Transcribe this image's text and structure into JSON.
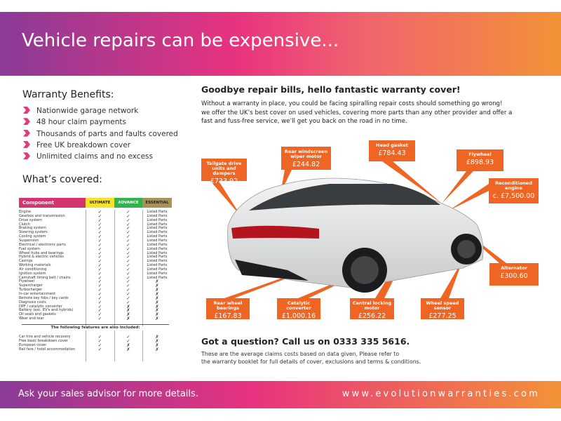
{
  "header": {
    "title": "Vehicle repairs can be expensive..."
  },
  "benefits": {
    "title": "Warranty Benefits:",
    "items": [
      "Nationwide garage network",
      "48 hour claim payments",
      "Thousands of parts and faults covered",
      "Free UK breakdown cover",
      "Unlimited claims and no excess"
    ]
  },
  "covered": {
    "title": "What’s covered:",
    "columns": [
      "Component",
      "ULTIMATE",
      "ADVANCE",
      "ESSENTIAL"
    ],
    "column_colors": [
      "#d6336f",
      "#f7e22a",
      "#2fb34a",
      "#a8915a"
    ],
    "rows": [
      [
        "Engine",
        "✓",
        "✓",
        "Listed Parts"
      ],
      [
        "Gearbox and transmission",
        "✓",
        "✓",
        "Listed Parts"
      ],
      [
        "Drive system",
        "✓",
        "✓",
        "Listed Parts"
      ],
      [
        "Clutch",
        "✓",
        "✓",
        "Listed Parts"
      ],
      [
        "Braking system",
        "✓",
        "✓",
        "Listed Parts"
      ],
      [
        "Steering system",
        "✓",
        "✓",
        "Listed Parts"
      ],
      [
        "Cooling system",
        "✓",
        "✓",
        "Listed Parts"
      ],
      [
        "Suspension",
        "✓",
        "✓",
        "Listed Parts"
      ],
      [
        "Electrical / electronic parts",
        "✓",
        "✓",
        "Listed Parts"
      ],
      [
        "Fuel system",
        "✓",
        "✓",
        "Listed Parts"
      ],
      [
        "Wheel hubs and bearings",
        "✓",
        "✓",
        "Listed Parts"
      ],
      [
        "Hybrid & electric vehicles",
        "✓",
        "✓",
        "Listed Parts"
      ],
      [
        "Casings",
        "✓",
        "✓",
        "Listed Parts"
      ],
      [
        "Working materials",
        "✓",
        "✓",
        "Listed Parts"
      ],
      [
        "Air conditioning",
        "✓",
        "✓",
        "Listed Parts"
      ],
      [
        "Ignition system",
        "✓",
        "✓",
        "Listed Parts"
      ],
      [
        "Camshaft timing belt / chains",
        "✓",
        "✓",
        "Listed Parts"
      ],
      [
        "Flywheel",
        "✓",
        "✓",
        "✗"
      ],
      [
        "Supercharger",
        "✓",
        "✓",
        "✗"
      ],
      [
        "Turbocharger",
        "✓",
        "✓",
        "✗"
      ],
      [
        "In-car entertainment",
        "✓",
        "✓",
        "✗"
      ],
      [
        "Remote key fobs / key cards",
        "✓",
        "✓",
        "✗"
      ],
      [
        "Diagnosis costs",
        "✓",
        "✓",
        "✗"
      ],
      [
        "DPF / catalytic converter",
        "✓",
        "✗",
        "✗"
      ],
      [
        "Battery (exc. EV's and hybrids)",
        "✓",
        "✗",
        "✗"
      ],
      [
        "Oil seals and gaskets",
        "✓",
        "✗",
        "✗"
      ],
      [
        "Wear and tear",
        "✓",
        "✗",
        "✗"
      ]
    ],
    "extras_title": "The following features are also included:",
    "extras": [
      [
        "Car hire and vehicle recovery",
        "✓",
        "✓",
        "✗"
      ],
      [
        "Free basic breakdown cover",
        "✓",
        "✓",
        "✗"
      ],
      [
        "European cover",
        "✓",
        "✗",
        "✗"
      ],
      [
        "Rail fare / hotel accommodation",
        "✓",
        "✗",
        "✗"
      ]
    ]
  },
  "intro": {
    "title": "Goodbye repair bills, hello fantastic warranty cover!",
    "lines": [
      "Without a warranty in place, you could be facing spiralling repair costs should something go wrong!",
      "we offer the UK’s best cover on used vehicles, covering more parts than any other provider and offer a",
      "fast and fuss-free service, we’ll get you back on the road in no time."
    ]
  },
  "callouts": [
    {
      "label": "Tailgate drive units and dampers",
      "price": "£733.92"
    },
    {
      "label": "Rear windscreen wiper motor",
      "price": "£244.82"
    },
    {
      "label": "Head gasket",
      "price": "£784.43"
    },
    {
      "label": "Flywheel",
      "price": "£898.93"
    },
    {
      "label": "Reconditioned engine",
      "price": "c. £7,500.00"
    },
    {
      "label": "Alternator",
      "price": "£300.60"
    },
    {
      "label": "Rear wheel bearings",
      "price": "£167.83"
    },
    {
      "label": "Catalytic converter",
      "price": "£1,000.16"
    },
    {
      "label": "Central locking motor",
      "price": "£256.22"
    },
    {
      "label": "Wheel speed sensor",
      "price": "£277.25"
    }
  ],
  "accent": "#ee6524",
  "contact": {
    "title": "Got a question? Call us on 0333 335 5616.",
    "lines": [
      "These are the average claims costs based on data given, Please refer to",
      "the warranty booklet for full details of cover, exclusions and terms & conditions."
    ]
  },
  "footer": {
    "left": "Ask your sales advisor for more details.",
    "right": "www.evolutionwarranties.com"
  }
}
